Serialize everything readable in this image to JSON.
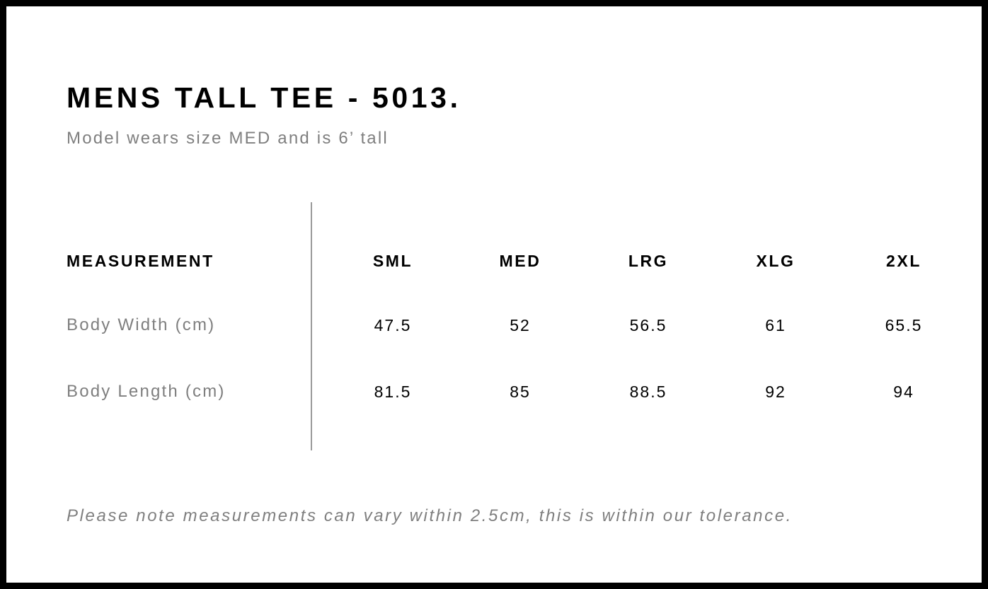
{
  "title": "MENS TALL TEE - 5013.",
  "subtitle": "Model wears size MED and is 6’ tall",
  "table": {
    "header_label": "MEASUREMENT",
    "sizes": [
      "SML",
      "MED",
      "LRG",
      "XLG",
      "2XL"
    ],
    "rows": [
      {
        "label": "Body Width (cm)",
        "values": [
          "47.5",
          "52",
          "56.5",
          "61",
          "65.5"
        ]
      },
      {
        "label": "Body Length (cm)",
        "values": [
          "81.5",
          "85",
          "88.5",
          "92",
          "94"
        ]
      }
    ]
  },
  "note": "Please note measurements can vary within 2.5cm, this is within our tolerance.",
  "colors": {
    "border": "#000000",
    "text": "#000000",
    "muted_text": "#7f7f7f",
    "divider": "#9a9a9a"
  }
}
